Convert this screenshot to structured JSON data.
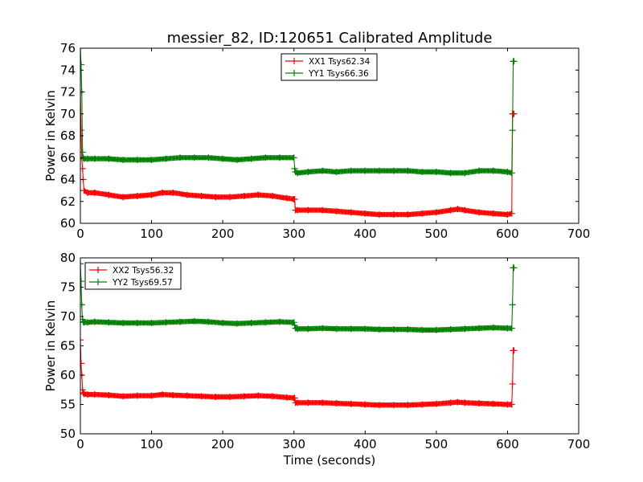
{
  "figure_title": "messier_82, ID:120651 Calibrated Amplitude",
  "chart_data": [
    {
      "type": "line",
      "title": "messier_82, ID:120651 Calibrated Amplitude",
      "xlabel": "",
      "ylabel": "Power in Kelvin",
      "xlim": [
        0,
        700
      ],
      "ylim": [
        60,
        76
      ],
      "xticks": [
        0,
        100,
        200,
        300,
        400,
        500,
        600,
        700
      ],
      "yticks": [
        60,
        62,
        64,
        66,
        68,
        70,
        72,
        74,
        76
      ],
      "grid": false,
      "legend": "top-center",
      "series": [
        {
          "name": "XX1 Tsys62.34",
          "color": "#ff0000",
          "marker": "+",
          "x": [
            0,
            1,
            2,
            3,
            4,
            5,
            10,
            20,
            40,
            60,
            80,
            100,
            115,
            130,
            150,
            170,
            190,
            210,
            230,
            250,
            270,
            290,
            300,
            301,
            302,
            305,
            320,
            340,
            360,
            380,
            400,
            420,
            440,
            460,
            480,
            500,
            520,
            530,
            540,
            560,
            580,
            600,
            606,
            607,
            608,
            609
          ],
          "y": [
            72.0,
            68.5,
            66.0,
            65.0,
            64.0,
            63.0,
            62.8,
            62.8,
            62.6,
            62.4,
            62.5,
            62.6,
            62.8,
            62.8,
            62.6,
            62.5,
            62.4,
            62.4,
            62.5,
            62.6,
            62.5,
            62.3,
            62.2,
            62.2,
            61.2,
            61.2,
            61.2,
            61.2,
            61.1,
            61.0,
            60.9,
            60.8,
            60.8,
            60.8,
            60.9,
            61.0,
            61.2,
            61.3,
            61.2,
            61.0,
            60.9,
            60.8,
            60.9,
            70.0,
            70.0,
            70.0
          ]
        },
        {
          "name": "YY1 Tsys66.36",
          "color": "#008000",
          "marker": "+",
          "x": [
            0,
            1,
            2,
            3,
            4,
            5,
            10,
            20,
            40,
            60,
            80,
            100,
            120,
            140,
            160,
            180,
            200,
            220,
            240,
            260,
            280,
            300,
            301,
            302,
            305,
            320,
            340,
            360,
            380,
            400,
            420,
            440,
            460,
            480,
            500,
            520,
            540,
            560,
            580,
            600,
            606,
            607,
            608,
            609
          ],
          "y": [
            76.0,
            74.5,
            72.0,
            66.5,
            66.0,
            65.9,
            65.9,
            65.9,
            65.9,
            65.8,
            65.8,
            65.8,
            65.9,
            66.0,
            66.0,
            66.0,
            65.9,
            65.8,
            65.9,
            66.0,
            66.0,
            66.0,
            65.0,
            64.7,
            64.6,
            64.7,
            64.8,
            64.7,
            64.8,
            64.8,
            64.8,
            64.8,
            64.8,
            64.7,
            64.7,
            64.6,
            64.6,
            64.8,
            64.8,
            64.7,
            64.6,
            68.5,
            74.8,
            74.8
          ]
        }
      ]
    },
    {
      "type": "line",
      "title": "",
      "xlabel": "Time (seconds)",
      "ylabel": "Power in Kelvin",
      "xlim": [
        0,
        700
      ],
      "ylim": [
        50,
        80
      ],
      "xticks": [
        0,
        100,
        200,
        300,
        400,
        500,
        600,
        700
      ],
      "yticks": [
        50,
        55,
        60,
        65,
        70,
        75,
        80
      ],
      "grid": false,
      "legend": "top-left",
      "series": [
        {
          "name": "XX2 Tsys56.32",
          "color": "#ff0000",
          "marker": "+",
          "x": [
            0,
            1,
            2,
            3,
            4,
            5,
            10,
            20,
            40,
            60,
            80,
            100,
            115,
            130,
            150,
            170,
            190,
            210,
            230,
            250,
            270,
            290,
            300,
            301,
            302,
            305,
            320,
            340,
            360,
            380,
            400,
            420,
            440,
            460,
            480,
            500,
            520,
            530,
            540,
            560,
            580,
            600,
            606,
            607,
            608,
            609
          ],
          "y": [
            66.0,
            62.0,
            60.0,
            57.5,
            57.0,
            56.8,
            56.7,
            56.7,
            56.6,
            56.4,
            56.5,
            56.5,
            56.7,
            56.6,
            56.5,
            56.4,
            56.3,
            56.3,
            56.4,
            56.5,
            56.4,
            56.2,
            56.1,
            56.1,
            55.3,
            55.3,
            55.3,
            55.3,
            55.2,
            55.1,
            55.0,
            54.9,
            54.9,
            54.9,
            55.0,
            55.1,
            55.3,
            55.4,
            55.3,
            55.2,
            55.1,
            55.0,
            55.0,
            58.5,
            64.2,
            64.2
          ]
        },
        {
          "name": "YY2 Tsys69.57",
          "color": "#008000",
          "marker": "+",
          "x": [
            0,
            1,
            2,
            3,
            4,
            5,
            10,
            20,
            40,
            60,
            80,
            100,
            120,
            140,
            160,
            180,
            200,
            220,
            240,
            260,
            280,
            300,
            301,
            302,
            305,
            320,
            340,
            360,
            380,
            400,
            420,
            440,
            460,
            480,
            500,
            520,
            540,
            560,
            580,
            600,
            606,
            607,
            608,
            609
          ],
          "y": [
            79.0,
            76.0,
            72.0,
            69.5,
            69.1,
            69.0,
            69.0,
            69.1,
            69.0,
            68.9,
            68.9,
            68.9,
            69.0,
            69.1,
            69.2,
            69.1,
            68.9,
            68.8,
            68.9,
            69.0,
            69.1,
            69.0,
            68.5,
            68.0,
            67.9,
            67.9,
            68.0,
            67.9,
            67.9,
            67.9,
            67.8,
            67.8,
            67.8,
            67.7,
            67.7,
            67.8,
            67.9,
            68.0,
            68.1,
            68.0,
            68.0,
            72.0,
            78.3,
            78.3
          ]
        }
      ]
    }
  ]
}
